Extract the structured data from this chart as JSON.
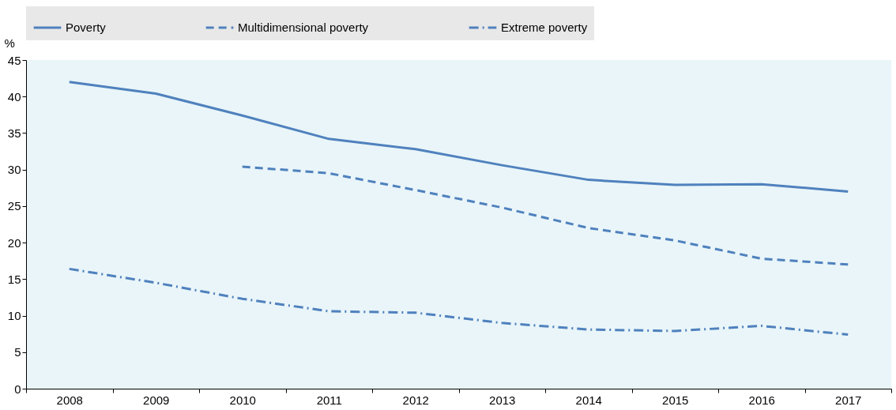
{
  "chart_data": {
    "type": "line",
    "ylabel": "%",
    "categories": [
      "2008",
      "2009",
      "2010",
      "2011",
      "2012",
      "2013",
      "2014",
      "2015",
      "2016",
      "2017"
    ],
    "ylim": [
      0,
      45
    ],
    "yticks": [
      0,
      5,
      10,
      15,
      20,
      25,
      30,
      35,
      40,
      45
    ],
    "grid": false,
    "legend": "top",
    "marker": "none",
    "series": [
      {
        "name": "Poverty",
        "color": "#4f81bd",
        "line_style": "solid",
        "values": [
          42.0,
          40.4,
          37.4,
          34.2,
          32.8,
          30.6,
          28.6,
          27.9,
          28.0,
          27.0
        ]
      },
      {
        "name": "Multidimensional poverty",
        "color": "#4f81bd",
        "line_style": "dashed",
        "values": [
          null,
          null,
          30.4,
          29.5,
          27.2,
          24.8,
          22.0,
          20.3,
          17.8,
          17.0
        ]
      },
      {
        "name": "Extreme poverty",
        "color": "#4f81bd",
        "line_style": "dashdot",
        "values": [
          16.4,
          14.5,
          12.3,
          10.6,
          10.4,
          9.0,
          8.1,
          7.9,
          8.6,
          7.4
        ]
      }
    ]
  }
}
